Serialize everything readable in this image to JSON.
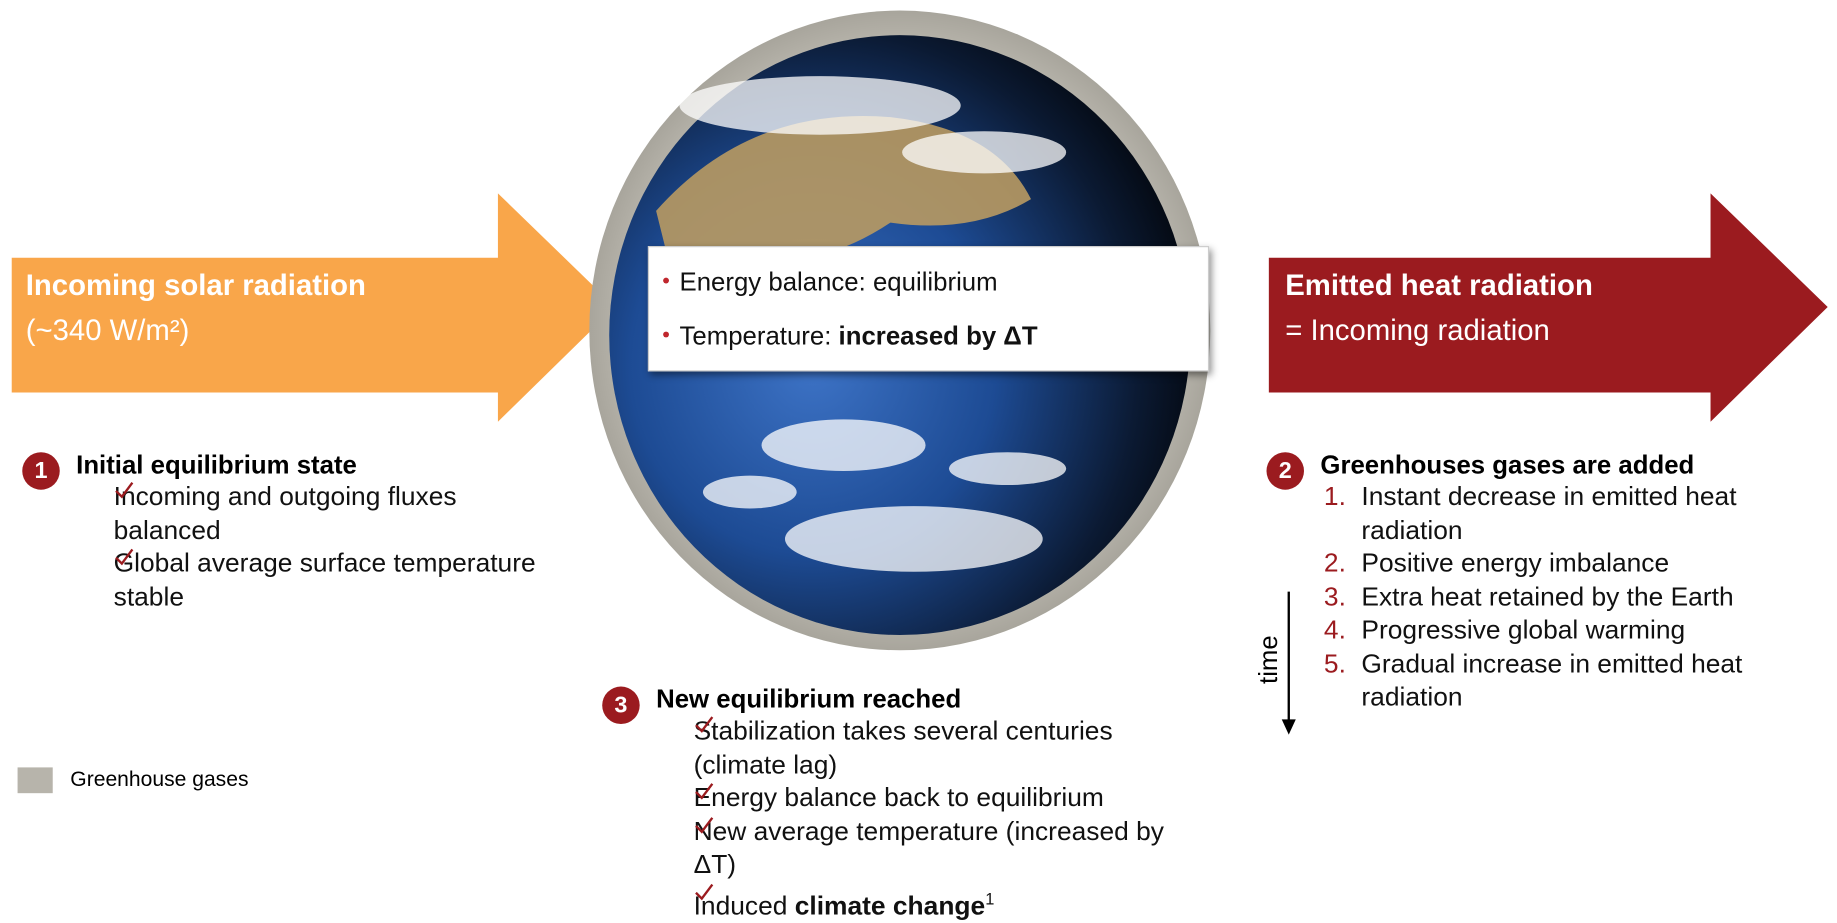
{
  "left_arrow": {
    "title": "Incoming solar radiation",
    "subtitle": "(~340 W/m²)"
  },
  "right_arrow": {
    "title": "Emitted heat radiation",
    "subtitle": "= Incoming radiation"
  },
  "center_box": {
    "items": [
      {
        "text": "Energy balance: equilibrium"
      },
      {
        "text": "Temperature: ",
        "bold": "increased by ΔT"
      }
    ]
  },
  "steps": [
    {
      "number": "1",
      "title": "Initial equilibrium state",
      "items": [
        {
          "text": "Incoming and outgoing fluxes balanced"
        },
        {
          "text": "Global average surface temperature stable"
        }
      ]
    },
    {
      "number": "2",
      "title": "Greenhouses gases are added",
      "items": [
        {
          "number": "1.",
          "text": "Instant decrease in emitted heat radiation"
        },
        {
          "number": "2.",
          "text": "Positive energy imbalance"
        },
        {
          "number": "3.",
          "text": "Extra heat retained by the Earth"
        },
        {
          "number": "4.",
          "text": "Progressive global warming"
        },
        {
          "number": "5.",
          "text": "Gradual increase in emitted heat radiation"
        }
      ]
    },
    {
      "number": "3",
      "title": "New equilibrium reached",
      "items": [
        {
          "text": "Stabilization takes several centuries (climate lag)"
        },
        {
          "text": "Energy balance back to equilibrium"
        },
        {
          "text": "New average temperature (increased by ΔT)"
        },
        {
          "text": "Induced ",
          "bold": "climate change",
          "footnote": "1"
        }
      ]
    }
  ],
  "time_label": "time",
  "legend": {
    "label": "Greenhouse gases"
  }
}
